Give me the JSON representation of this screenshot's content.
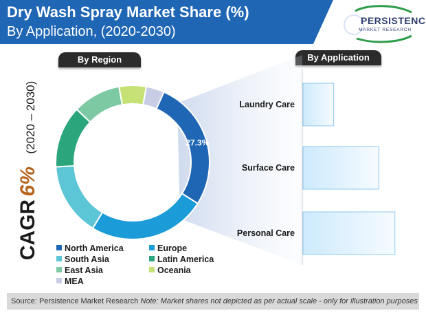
{
  "header": {
    "title": "Dry Wash Spray Market Share (%)",
    "subtitle": "By Application, (2020-2030)"
  },
  "logo": {
    "name": "PERSISTENCE",
    "tagline": "MARKET RESEARCH"
  },
  "sections": {
    "region": "By Region",
    "application": "By Application"
  },
  "cagr": {
    "label": "CAGR",
    "value": "6%",
    "period": "(2020 – 2030)"
  },
  "colors": {
    "north_america": "#1f66b5",
    "europe": "#1b9bd7",
    "south_asia": "#5cc6d6",
    "latin_america": "#2aa57c",
    "east_asia": "#7cc9a4",
    "oceania": "#c6e276",
    "mea": "#c8cde6",
    "bar_fill_from": "#cdeafc",
    "bar_fill_to": "#f6fbff",
    "bar_border": "#8ec9ef"
  },
  "chart_data": [
    {
      "type": "pie",
      "variant": "donut",
      "title": "By Region",
      "categories": [
        "North America",
        "Europe",
        "South Asia",
        "Latin America",
        "East Asia",
        "Oceania",
        "MEA"
      ],
      "values": [
        27.3,
        24.7,
        15.4,
        13.0,
        10.1,
        5.7,
        3.8
      ],
      "data_labels": [
        "27.3%",
        "",
        "",
        "",
        "",
        "",
        ""
      ],
      "legend": [
        "North America",
        "Europe",
        "South Asia",
        "Latin America",
        "East Asia",
        "Oceania",
        "MEA"
      ]
    },
    {
      "type": "bar",
      "orientation": "horizontal",
      "title": "By Application",
      "categories": [
        "Laundry Care",
        "Surface Care",
        "Personal Care"
      ],
      "values": [
        21,
        52,
        63
      ],
      "xlim": [
        0,
        65
      ],
      "note": "Market shares not depicted as per actual scale"
    }
  ],
  "footer": {
    "source": "Source: Persistence Market Research",
    "note": "Note: Market shares not depicted as per actual scale - only for illustration purposes"
  }
}
